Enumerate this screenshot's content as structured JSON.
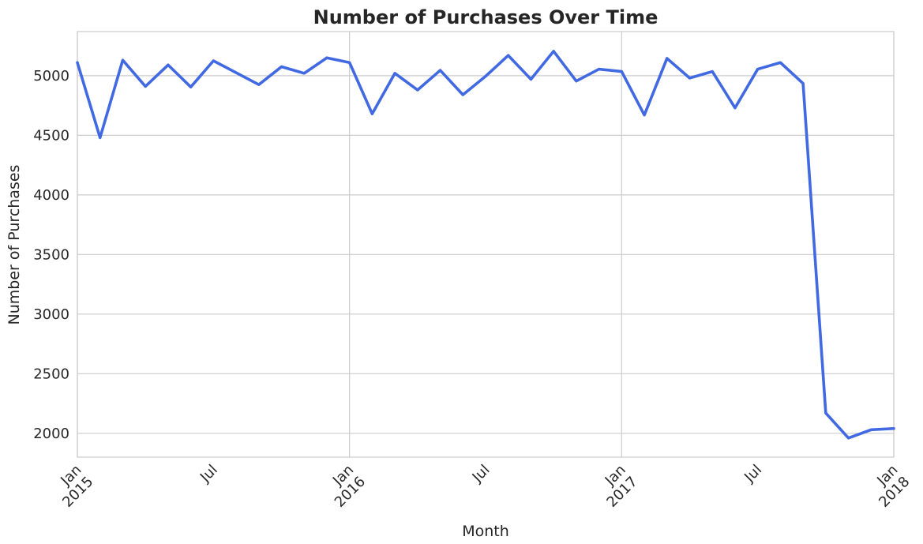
{
  "chart_data": {
    "type": "line",
    "title": "Number of Purchases Over Time",
    "xlabel": "Month",
    "ylabel": "Number of Purchases",
    "x_range": [
      "2015-01",
      "2018-01"
    ],
    "ylim": [
      1800,
      5370
    ],
    "y_ticks": [
      2000,
      2500,
      3000,
      3500,
      4000,
      4500,
      5000
    ],
    "x_ticks": [
      {
        "x": "2015-01",
        "line1": "Jan",
        "line2": "2015",
        "major": true
      },
      {
        "x": "2015-07",
        "line1": "Jul",
        "line2": "",
        "major": false
      },
      {
        "x": "2016-01",
        "line1": "Jan",
        "line2": "2016",
        "major": true
      },
      {
        "x": "2016-07",
        "line1": "Jul",
        "line2": "",
        "major": false
      },
      {
        "x": "2017-01",
        "line1": "Jan",
        "line2": "2017",
        "major": true
      },
      {
        "x": "2017-07",
        "line1": "Jul",
        "line2": "",
        "major": false
      },
      {
        "x": "2018-01",
        "line1": "Jan",
        "line2": "2018",
        "major": true
      }
    ],
    "grid": true,
    "color": "#4169e1",
    "x": [
      "2015-01",
      "2015-02",
      "2015-03",
      "2015-04",
      "2015-05",
      "2015-06",
      "2015-07",
      "2015-08",
      "2015-09",
      "2015-10",
      "2015-11",
      "2015-12",
      "2016-01",
      "2016-02",
      "2016-03",
      "2016-04",
      "2016-05",
      "2016-06",
      "2016-07",
      "2016-08",
      "2016-09",
      "2016-10",
      "2016-11",
      "2016-12",
      "2017-01",
      "2017-02",
      "2017-03",
      "2017-04",
      "2017-05",
      "2017-06",
      "2017-07",
      "2017-08",
      "2017-09",
      "2017-10",
      "2017-11",
      "2017-12",
      "2018-01"
    ],
    "values": [
      5110,
      4480,
      5130,
      4910,
      5090,
      4905,
      5125,
      5025,
      4925,
      5075,
      5020,
      5150,
      5110,
      4680,
      5020,
      4880,
      5045,
      4840,
      4995,
      5170,
      4970,
      5205,
      4955,
      5055,
      5035,
      4670,
      5145,
      4980,
      5035,
      4730,
      5055,
      5110,
      4935,
      2170,
      1960,
      2030,
      2040
    ]
  }
}
